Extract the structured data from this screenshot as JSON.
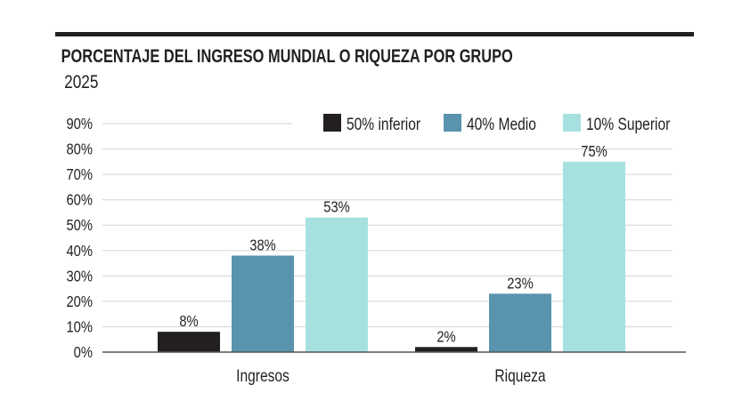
{
  "chart_data": {
    "type": "bar",
    "title": "PORCENTAJE DEL INGRESO MUNDIAL O RIQUEZA POR GRUPO",
    "subtitle": "2025",
    "categories": [
      "Ingresos",
      "Riqueza"
    ],
    "series": [
      {
        "name": "50% inferior",
        "values": [
          8,
          2
        ],
        "color": "#231f20"
      },
      {
        "name": "40% Medio",
        "values": [
          38,
          23
        ],
        "color": "#5a93ad"
      },
      {
        "name": "10% Superior",
        "values": [
          53,
          75
        ],
        "color": "#a6e1e0"
      }
    ],
    "data_labels": [
      [
        "8%",
        "2%"
      ],
      [
        "38%",
        "23%"
      ],
      [
        "53%",
        "75%"
      ]
    ],
    "yticks": [
      "0%",
      "10%",
      "20%",
      "30%",
      "40%",
      "50%",
      "60%",
      "70%",
      "80%",
      "90%"
    ],
    "ylim": [
      0,
      90
    ],
    "xlabel": "",
    "ylabel": "",
    "grid": true,
    "legend_position": "top-right",
    "gridline_color": "#dddddd",
    "title_rule_color": "#231f20"
  }
}
